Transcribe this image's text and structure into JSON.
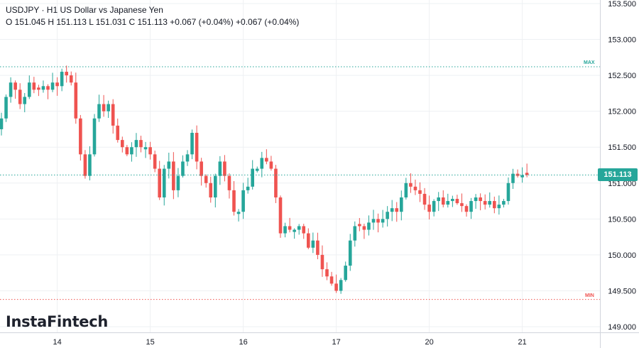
{
  "header": {
    "title": "USDJPY · H1 US Dollar vs Japanese Yen",
    "ohlc": "O 151.045 H 151.113 L 151.031 C 151.113 +0.067 (+0.04%) +0.067 (+0.04%)"
  },
  "logo": "InstaFintech",
  "markers": {
    "max_label": "MAX",
    "min_label": "MIN",
    "max_value": 152.62,
    "min_value": 149.38
  },
  "current_price": {
    "label": "151.113",
    "value": 151.113
  },
  "colors": {
    "up": "#26a69a",
    "down": "#ef5350",
    "grid": "#eef0f3",
    "axis_text": "#131722",
    "max": "#26a69a",
    "min": "#ef5350"
  },
  "chart_data": {
    "type": "candlestick",
    "symbol": "USDJPY",
    "timeframe": "H1",
    "ylim": [
      149.0,
      153.5
    ],
    "y_ticks": [
      "153.500",
      "153.000",
      "152.500",
      "152.000",
      "151.500",
      "151.000",
      "150.500",
      "150.000",
      "149.500",
      "149.000"
    ],
    "x_ticks": [
      {
        "label": "14",
        "bar": 12
      },
      {
        "label": "15",
        "bar": 32
      },
      {
        "label": "16",
        "bar": 52
      },
      {
        "label": "17",
        "bar": 72
      },
      {
        "label": "20",
        "bar": 92
      },
      {
        "label": "21",
        "bar": 112
      }
    ],
    "closes": [
      151.9,
      152.2,
      152.4,
      152.3,
      152.1,
      152.2,
      152.4,
      152.3,
      152.3,
      152.35,
      152.3,
      152.4,
      152.35,
      152.55,
      152.5,
      152.4,
      151.9,
      151.4,
      151.1,
      151.4,
      151.9,
      152.1,
      152.0,
      152.1,
      151.8,
      151.6,
      151.5,
      151.4,
      151.5,
      151.6,
      151.5,
      151.5,
      151.4,
      151.2,
      150.8,
      151.2,
      151.3,
      150.9,
      151.1,
      151.3,
      151.4,
      151.7,
      151.3,
      151.1,
      151.0,
      150.8,
      151.1,
      151.3,
      151.1,
      150.9,
      150.6,
      150.6,
      150.9,
      150.95,
      151.2,
      151.2,
      151.35,
      151.3,
      151.2,
      150.8,
      150.3,
      150.4,
      150.35,
      150.35,
      150.4,
      150.3,
      150.1,
      150.2,
      150.0,
      149.8,
      149.7,
      149.6,
      149.5,
      149.65,
      149.85,
      150.2,
      150.4,
      150.4,
      150.35,
      150.45,
      150.5,
      150.45,
      150.5,
      150.6,
      150.65,
      150.6,
      150.8,
      151.0,
      150.95,
      150.9,
      150.85,
      150.7,
      150.6,
      150.75,
      150.8,
      150.7,
      150.75,
      150.78,
      150.72,
      150.68,
      150.6,
      150.75,
      150.8,
      150.75,
      150.7,
      150.75,
      150.65,
      150.7,
      150.75,
      151.0,
      151.13,
      151.1,
      151.11,
      151.113
    ]
  }
}
